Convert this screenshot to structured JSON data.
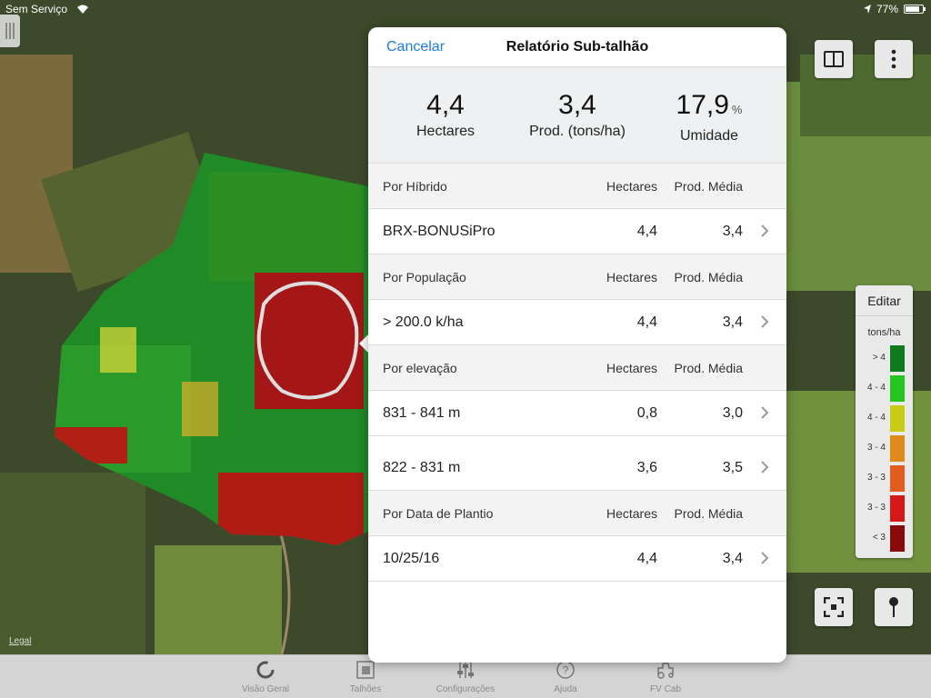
{
  "status_bar": {
    "carrier": "Sem Serviço",
    "battery": "77%",
    "battery_level": 0.77
  },
  "map": {
    "legal_label": "Legal"
  },
  "legend": {
    "edit_label": "Editar",
    "unit": "tons/ha",
    "rows": [
      {
        "label": "> 4",
        "color": "#0f7a1e"
      },
      {
        "label": "4 - 4",
        "color": "#26c61f"
      },
      {
        "label": "4 - 4",
        "color": "#c8cc16"
      },
      {
        "label": "3 - 4",
        "color": "#de8b1c"
      },
      {
        "label": "3 - 3",
        "color": "#e45b1f"
      },
      {
        "label": "3 - 3",
        "color": "#d61818"
      },
      {
        "label": "< 3",
        "color": "#8a0a0c"
      }
    ]
  },
  "modal": {
    "cancel_label": "Cancelar",
    "title": "Relatório Sub-talhão",
    "summary": {
      "area_value": "4,4",
      "area_label": "Hectares",
      "prod_value": "3,4",
      "prod_label": "Prod. (tons/ha)",
      "moisture_value": "17,9",
      "moisture_unit": "%",
      "moisture_label": "Umidade"
    },
    "sections": [
      {
        "title": "Por Híbrido",
        "col1": "Hectares",
        "col2": "Prod. Média",
        "rows": [
          {
            "name": "BRX-BONUSiPro",
            "hectares": "4,4",
            "prod": "3,4"
          }
        ]
      },
      {
        "title": "Por População",
        "col1": "Hectares",
        "col2": "Prod. Média",
        "rows": [
          {
            "name": "> 200.0 k/ha",
            "hectares": "4,4",
            "prod": "3,4"
          }
        ]
      },
      {
        "title": "Por elevação",
        "col1": "Hectares",
        "col2": "Prod. Média",
        "rows": [
          {
            "name": "831 - 841 m",
            "hectares": "0,8",
            "prod": "3,0"
          },
          {
            "name": "822 - 831 m",
            "hectares": "3,6",
            "prod": "3,5"
          }
        ]
      },
      {
        "title": "Por Data de Plantio",
        "col1": "Hectares",
        "col2": "Prod. Média",
        "rows": [
          {
            "name": "10/25/16",
            "hectares": "4,4",
            "prod": "3,4"
          }
        ]
      }
    ]
  },
  "tab_bar": {
    "tabs": [
      {
        "label": "Visão Geral",
        "icon": "overview-ring-icon"
      },
      {
        "label": "Talhões",
        "icon": "fields-icon"
      },
      {
        "label": "Configurações",
        "icon": "sliders-icon"
      },
      {
        "label": "Ajuda",
        "icon": "help-icon"
      },
      {
        "label": "FV Cab",
        "icon": "tractor-icon"
      }
    ]
  }
}
